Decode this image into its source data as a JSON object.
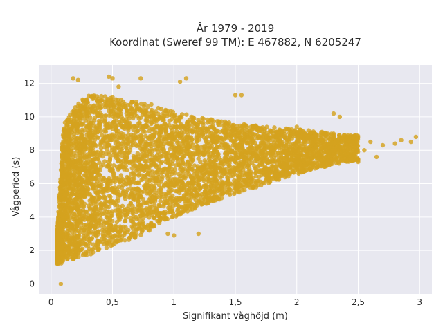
{
  "chart_data": {
    "type": "scatter",
    "title": "År 1979 - 2019",
    "subtitle": "Koordinat (Sweref 99 TM): E 467882, N 6205247",
    "xlabel": "Signifikant våghöjd (m)",
    "ylabel": "Vågperiod (s)",
    "xlim": [
      -0.1,
      3.1
    ],
    "ylim": [
      -0.6,
      13.1
    ],
    "x_ticks": [
      0,
      0.5,
      1,
      1.5,
      2,
      2.5,
      3
    ],
    "x_tick_labels": [
      "0",
      "0,5",
      "1",
      "1,5",
      "2",
      "2,5",
      "3"
    ],
    "y_ticks": [
      0,
      2,
      4,
      6,
      8,
      10,
      12
    ],
    "y_tick_labels": [
      "0",
      "2",
      "4",
      "6",
      "8",
      "10",
      "12"
    ],
    "grid": true,
    "legend": "none",
    "marker_color": "#D4A21F",
    "plot_background": "#E8E8F0",
    "envelope": {
      "note_points": "dense cloud bounded below and above",
      "lower": [
        [
          0.05,
          1.2
        ],
        [
          0.1,
          1.25
        ],
        [
          0.3,
          1.7
        ],
        [
          0.5,
          2.3
        ],
        [
          0.7,
          2.8
        ],
        [
          0.9,
          3.7
        ],
        [
          1.2,
          4.6
        ],
        [
          1.5,
          5.4
        ],
        [
          1.8,
          6.1
        ],
        [
          2.1,
          6.8
        ],
        [
          2.4,
          7.3
        ]
      ],
      "upper": [
        [
          0.05,
          3.0
        ],
        [
          0.1,
          9.5
        ],
        [
          0.2,
          10.7
        ],
        [
          0.3,
          11.3
        ],
        [
          0.5,
          11.2
        ],
        [
          0.8,
          10.8
        ],
        [
          1.0,
          10.3
        ],
        [
          1.2,
          10.0
        ],
        [
          1.5,
          9.6
        ],
        [
          1.8,
          9.4
        ],
        [
          2.1,
          9.2
        ],
        [
          2.4,
          8.9
        ]
      ]
    },
    "sample_points": [
      [
        0.08,
        0.0
      ],
      [
        0.18,
        12.3
      ],
      [
        0.22,
        12.2
      ],
      [
        0.47,
        12.4
      ],
      [
        0.5,
        12.3
      ],
      [
        0.73,
        12.3
      ],
      [
        1.05,
        12.1
      ],
      [
        1.1,
        12.3
      ],
      [
        0.55,
        11.8
      ],
      [
        1.5,
        11.3
      ],
      [
        1.55,
        11.3
      ],
      [
        2.3,
        10.2
      ],
      [
        2.35,
        10.0
      ],
      [
        2.0,
        9.4
      ],
      [
        2.6,
        8.5
      ],
      [
        2.7,
        8.3
      ],
      [
        2.8,
        8.4
      ],
      [
        2.85,
        8.6
      ],
      [
        2.97,
        8.8
      ],
      [
        2.93,
        8.5
      ],
      [
        2.55,
        8.0
      ],
      [
        2.48,
        7.9
      ],
      [
        2.65,
        7.6
      ],
      [
        2.5,
        7.4
      ],
      [
        1.2,
        3.0
      ],
      [
        1.0,
        2.9
      ],
      [
        0.95,
        3.0
      ],
      [
        0.8,
        3.2
      ],
      [
        0.05,
        1.3
      ],
      [
        0.06,
        1.2
      ]
    ]
  }
}
